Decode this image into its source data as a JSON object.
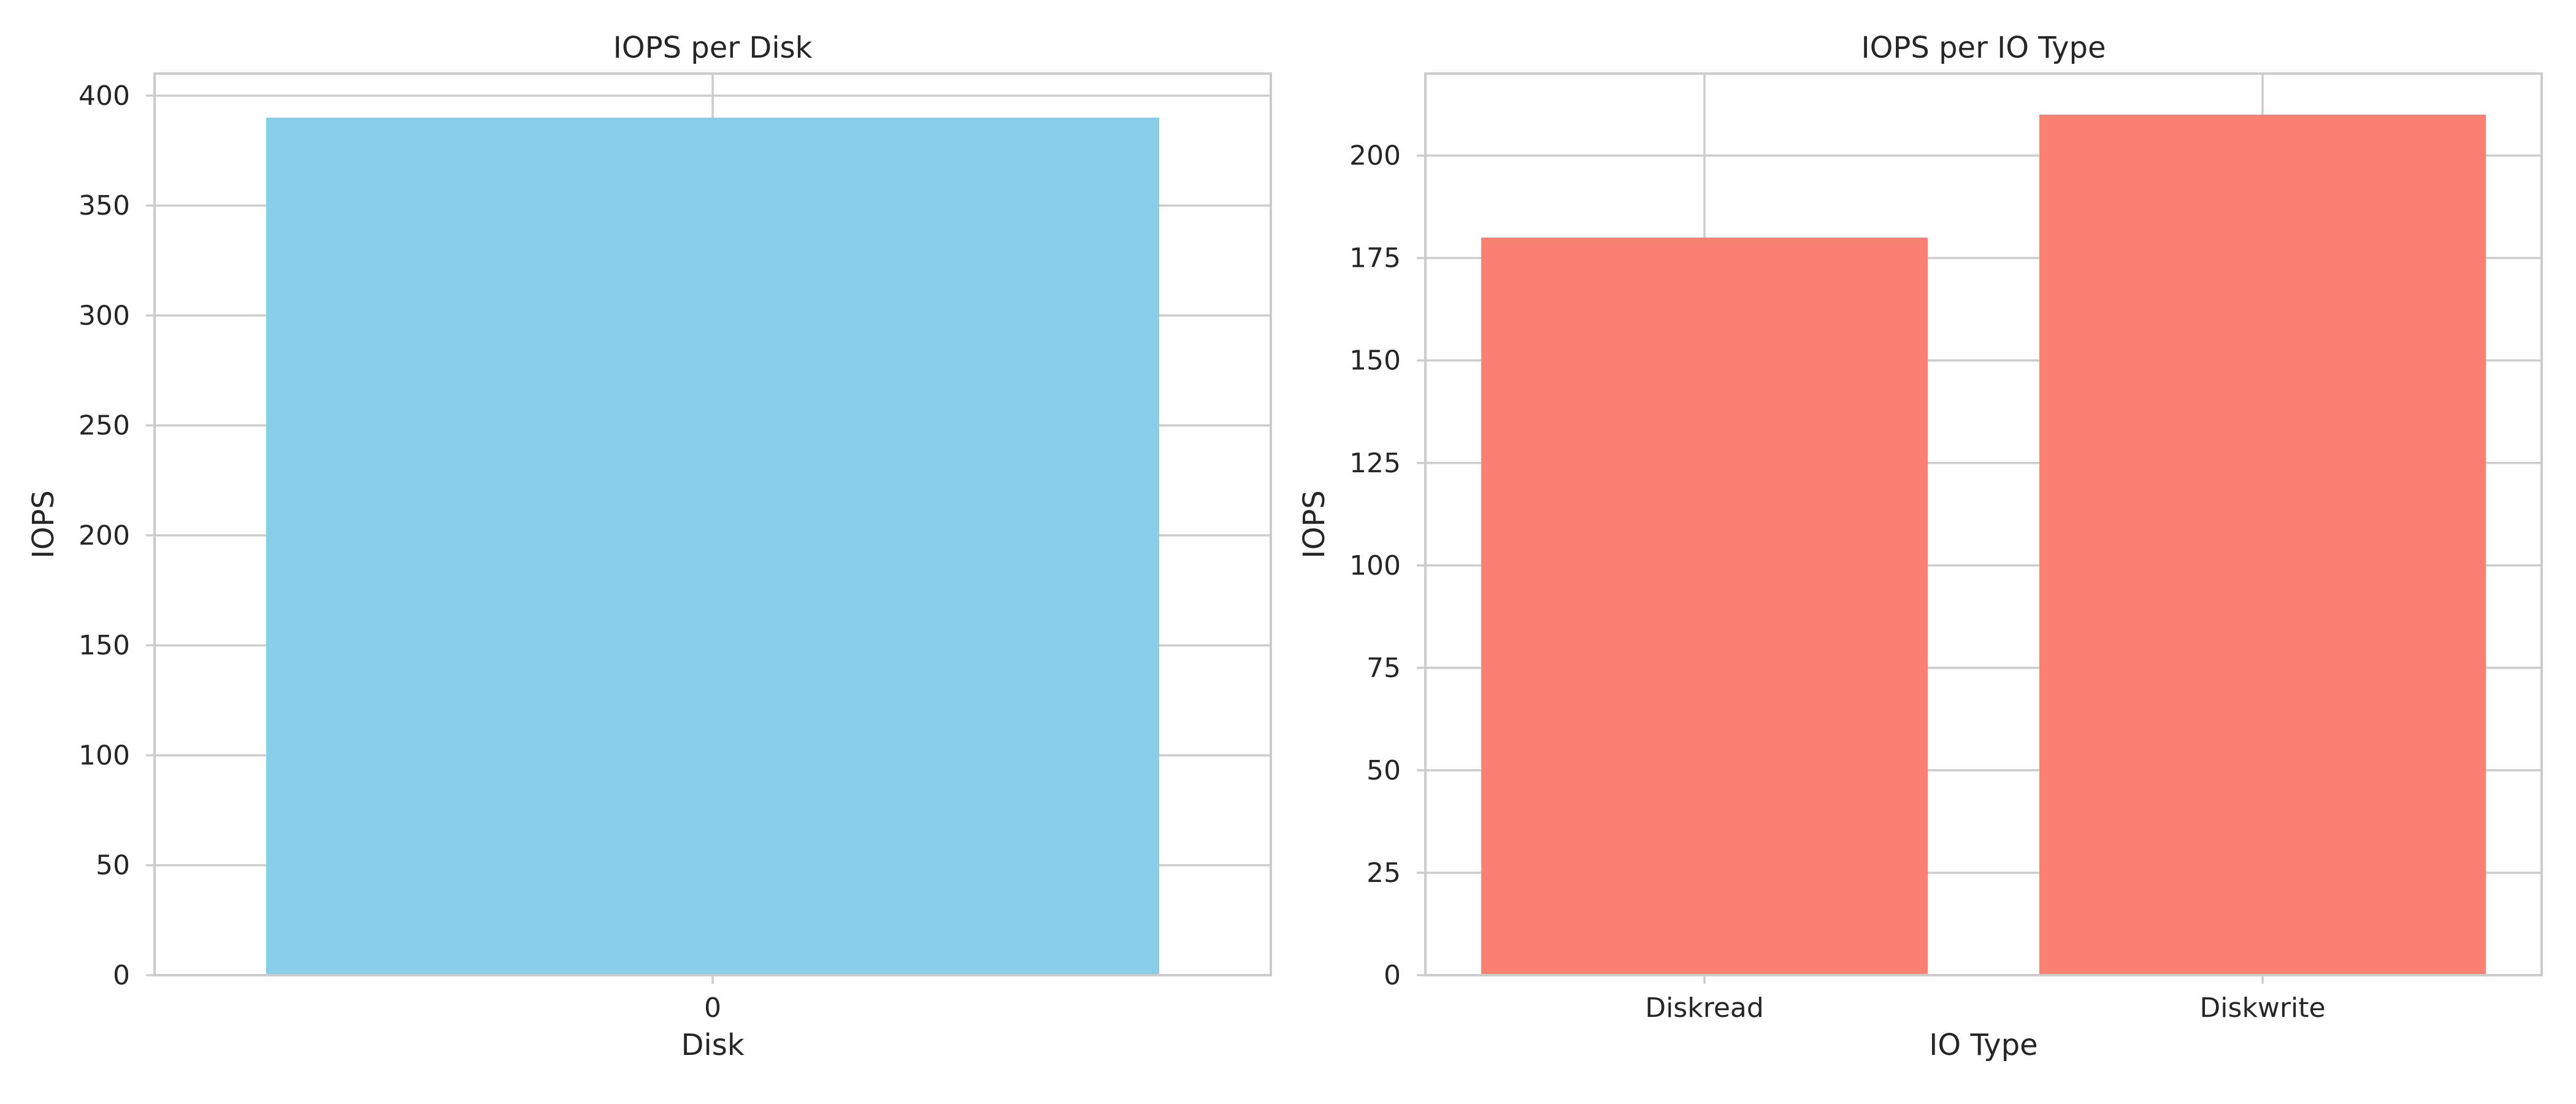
{
  "chart_data": [
    {
      "type": "bar",
      "title": "IOPS per Disk",
      "xlabel": "Disk",
      "ylabel": "IOPS",
      "categories": [
        "0"
      ],
      "values": [
        390
      ],
      "ylim": [
        0,
        410
      ],
      "yticks": [
        0,
        50,
        100,
        150,
        200,
        250,
        300,
        350,
        400
      ],
      "bar_color": "#87CEEB",
      "grid": true,
      "legend": "none"
    },
    {
      "type": "bar",
      "title": "IOPS per IO Type",
      "xlabel": "IO Type",
      "ylabel": "IOPS",
      "categories": [
        "Diskread",
        "Diskwrite"
      ],
      "values": [
        180,
        210
      ],
      "ylim": [
        0,
        220
      ],
      "yticks": [
        0,
        25,
        50,
        75,
        100,
        125,
        150,
        175,
        200
      ],
      "bar_color": "#FA8072",
      "grid": true,
      "legend": "none"
    }
  ]
}
